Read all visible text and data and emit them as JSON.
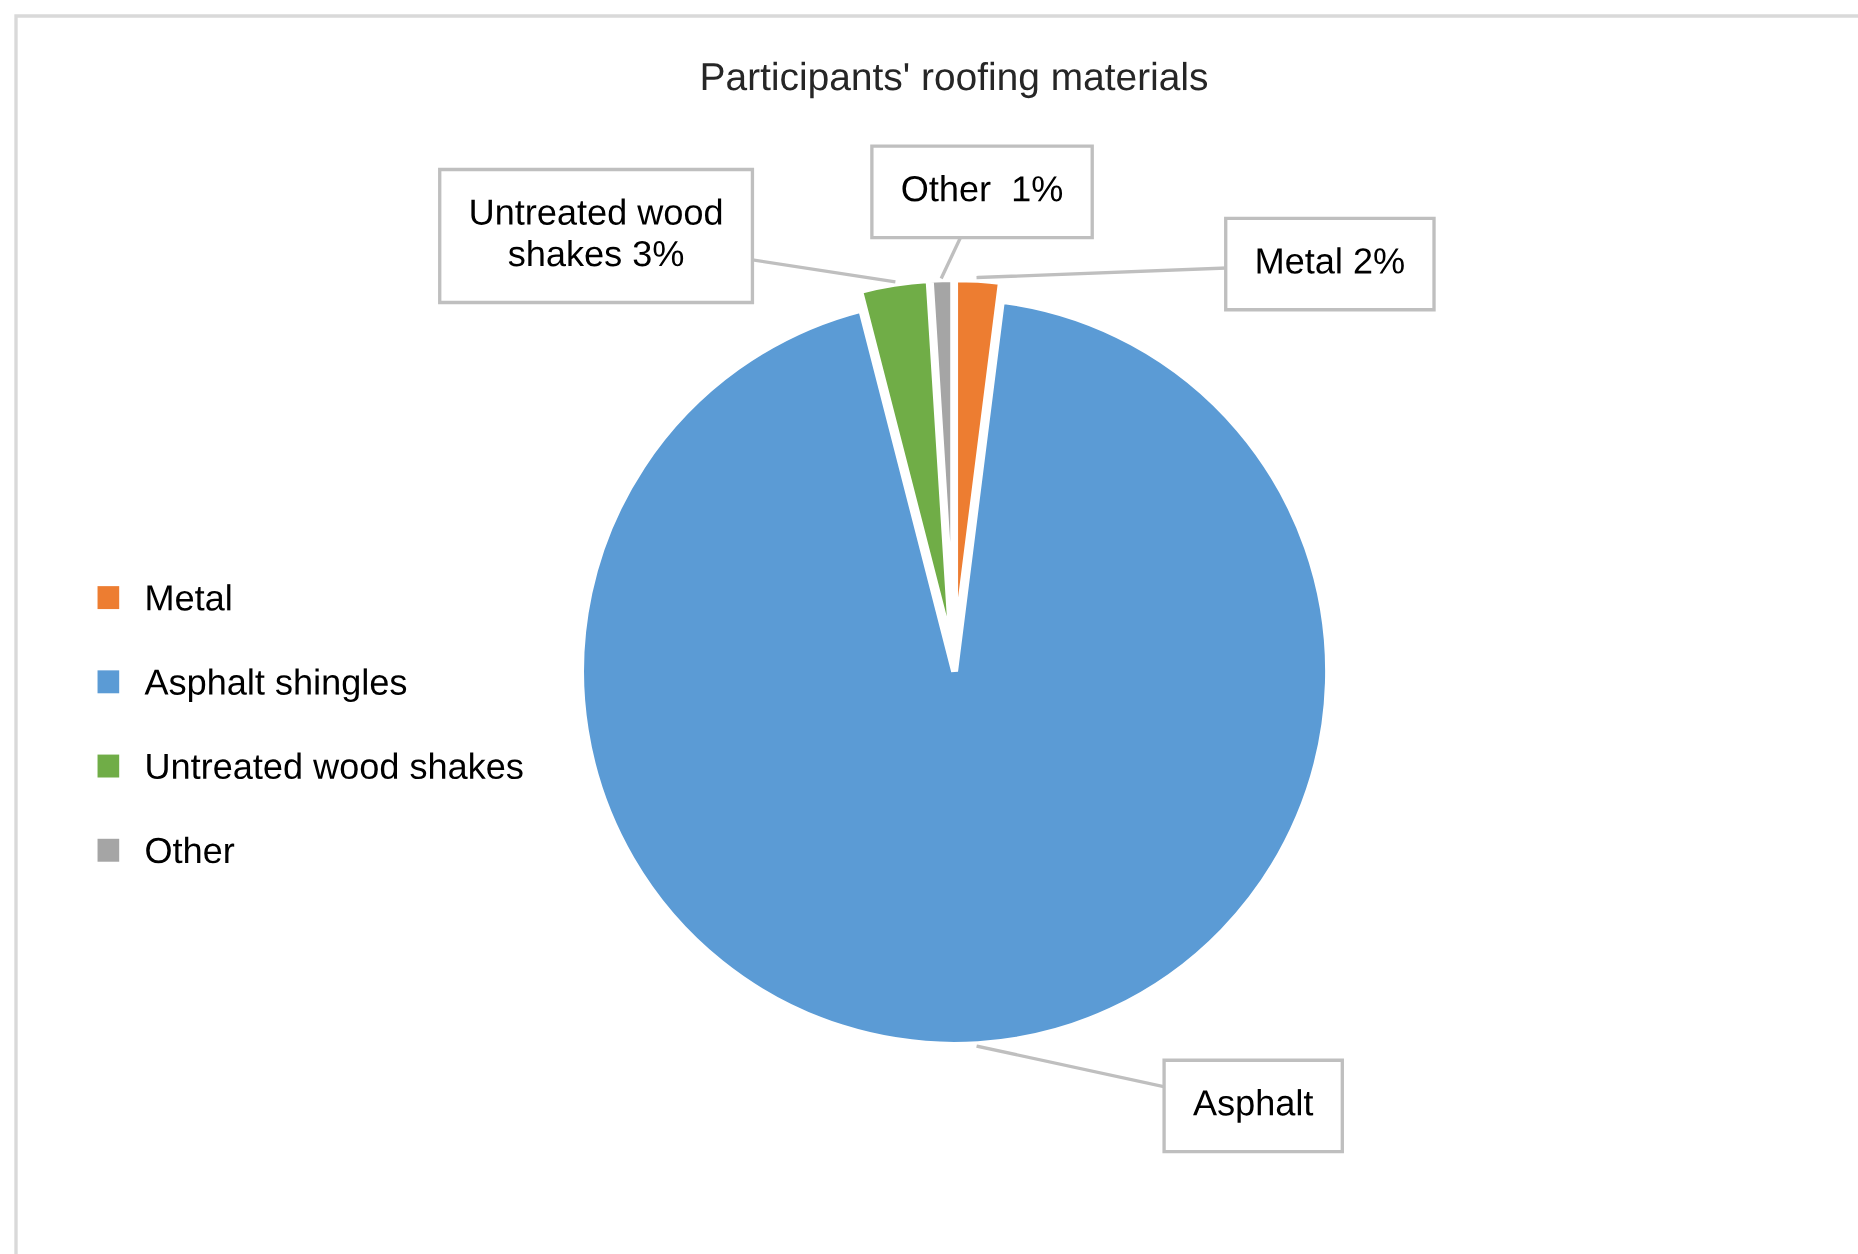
{
  "chart_data": {
    "type": "pie",
    "title": "Participants' roofing materials",
    "categories": [
      "Metal",
      "Asphalt shingles",
      "Untreated wood shakes",
      "Other"
    ],
    "values": [
      2,
      94,
      3,
      1
    ],
    "colors": [
      "#ed7d31",
      "#5b9bd5",
      "#70ad47",
      "#a5a5a5"
    ],
    "value_labels": [
      "Metal 2%",
      "Asphalt",
      "Untreated wood shakes 3%",
      "Other  1%"
    ],
    "legend": "left"
  }
}
